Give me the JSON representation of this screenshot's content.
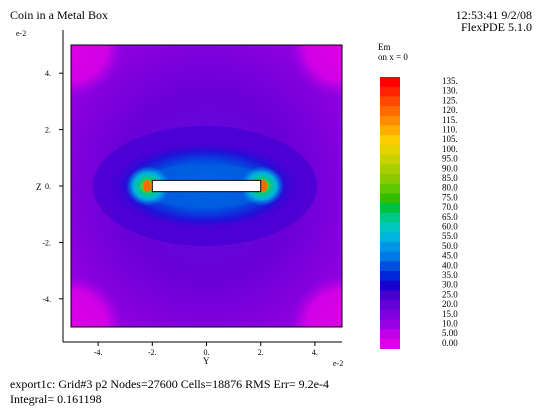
{
  "header": {
    "title": "Coin in a Metal Box",
    "timestamp": "12:53:41 9/2/08",
    "software": "FlexPDE 5.1.0"
  },
  "legend": {
    "variable": "Em",
    "subtitle": "on x = 0"
  },
  "footer": {
    "stats": "export1c:  Grid#3  p2  Nodes=27600 Cells=18876 RMS Err= 9.2e-4",
    "integral": "Integral=  0.161198"
  },
  "chart_data": {
    "type": "heatmap",
    "title": "Coin in a Metal Box",
    "xlabel": "Y",
    "ylabel": "Z",
    "x_multiplier_label": "e-2",
    "y_multiplier_label": "e-2",
    "xlim": [
      -5,
      5
    ],
    "ylim": [
      -5,
      5
    ],
    "x_ticks": [
      -4,
      -2,
      0,
      2,
      4
    ],
    "x_tick_labels": [
      "-4.",
      "-2.",
      "0.",
      "2.",
      "4."
    ],
    "y_ticks": [
      4,
      2,
      0,
      -2,
      -4
    ],
    "y_tick_labels": [
      "4.",
      "2.",
      "0.",
      "-2.",
      "-4."
    ],
    "coin": {
      "y_range": [
        -2,
        2
      ],
      "z_range": [
        -0.2,
        0.2
      ]
    },
    "colorbar": {
      "variable": "Em",
      "levels": [
        "135.",
        "130.",
        "125.",
        "120.",
        "115.",
        "110.",
        "105.",
        "100.",
        "95.0",
        "90.0",
        "85.0",
        "80.0",
        "75.0",
        "70.0",
        "65.0",
        "60.0",
        "55.0",
        "50.0",
        "45.0",
        "40.0",
        "35.0",
        "30.0",
        "25.0",
        "20.0",
        "15.0",
        "10.0",
        "5.00",
        "0.00"
      ],
      "colors": [
        "#ff0000",
        "#ff2200",
        "#ff4800",
        "#ff6a00",
        "#ff8c00",
        "#ffae00",
        "#ffcc00",
        "#e6d200",
        "#c8d200",
        "#a8d000",
        "#88cc00",
        "#5ec800",
        "#30c000",
        "#00c040",
        "#00c888",
        "#00c8c0",
        "#00b4e0",
        "#0096e6",
        "#0078e6",
        "#0050e0",
        "#0028d8",
        "#1a00d0",
        "#4800d0",
        "#6400d8",
        "#8000e0",
        "#9a00e4",
        "#c000e6",
        "#e000e6"
      ]
    }
  }
}
